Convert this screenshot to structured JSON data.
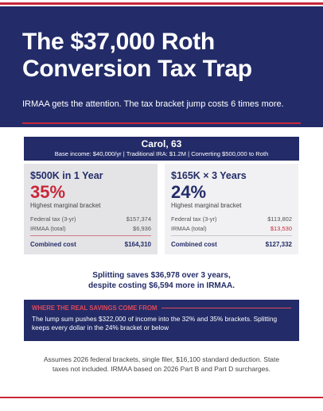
{
  "header": {
    "title_lines": [
      "The $37,000 Roth",
      "Conversion Tax Trap"
    ],
    "subtitle": "IRMAA gets the attention. The tax bracket jump costs 6 times more."
  },
  "scenario": {
    "name": "Carol, 63",
    "details": "Base income: $40,000/yr | Traditional IRA: $1.2M | Converting $500,000 to Roth"
  },
  "cards": [
    {
      "heading": "$500K in 1 Year",
      "rate": "35%",
      "rate_label": "Highest marginal bracket",
      "rows": [
        [
          "Federal tax (3-yr)",
          "$157,374"
        ],
        [
          "IRMAA (total)",
          "$6,936"
        ]
      ],
      "total": [
        "Combined cost",
        "$164,310"
      ]
    },
    {
      "heading": "$165K × 3 Years",
      "rate": "24%",
      "rate_label": "Highest marginal bracket",
      "rows": [
        [
          "Federal tax (3-yr)",
          "$113,802"
        ],
        [
          "IRMAA (total)",
          "$13,530"
        ]
      ],
      "total": [
        "Combined cost",
        "$127,332"
      ]
    }
  ],
  "summary": [
    "Splitting saves $36,978 over 3 years,",
    "despite costing $6,594 more in IRMAA."
  ],
  "callout": {
    "heading": "WHERE THE REAL SAVINGS COME FROM",
    "body": "The lump sum pushes $322,000 of income into the 32% and 35% brackets. Splitting keeps every dollar in the 24% bracket or below"
  },
  "footnote": "Assumes 2026 federal brackets, single filer, $16,100 standard deduction. State taxes not included. IRMAA based on 2026 Part B and Part D surcharges."
}
